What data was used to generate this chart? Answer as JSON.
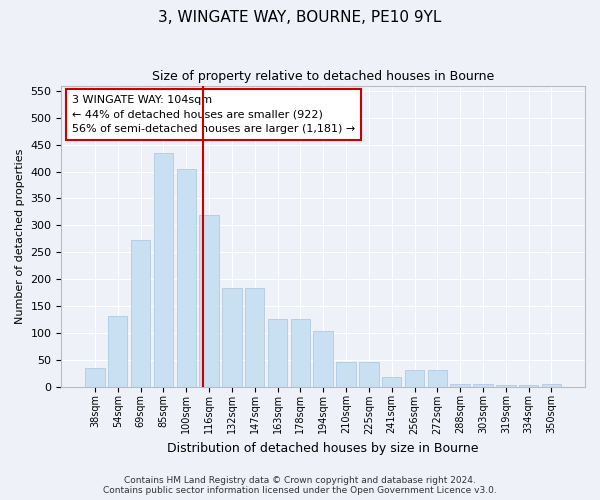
{
  "title_line1": "3, WINGATE WAY, BOURNE, PE10 9YL",
  "title_line2": "Size of property relative to detached houses in Bourne",
  "xlabel": "Distribution of detached houses by size in Bourne",
  "ylabel": "Number of detached properties",
  "footer_line1": "Contains HM Land Registry data © Crown copyright and database right 2024.",
  "footer_line2": "Contains public sector information licensed under the Open Government Licence v3.0.",
  "annotation_line1": "3 WINGATE WAY: 104sqm",
  "annotation_line2": "← 44% of detached houses are smaller (922)",
  "annotation_line3": "56% of semi-detached houses are larger (1,181) →",
  "bar_labels": [
    "38sqm",
    "54sqm",
    "69sqm",
    "85sqm",
    "100sqm",
    "116sqm",
    "132sqm",
    "147sqm",
    "163sqm",
    "178sqm",
    "194sqm",
    "210sqm",
    "225sqm",
    "241sqm",
    "256sqm",
    "272sqm",
    "288sqm",
    "303sqm",
    "319sqm",
    "334sqm",
    "350sqm"
  ],
  "bar_values": [
    35,
    132,
    272,
    435,
    405,
    320,
    183,
    183,
    125,
    125,
    103,
    45,
    45,
    17,
    30,
    30,
    5,
    5,
    2,
    2,
    5
  ],
  "bar_color": "#c9dff2",
  "bar_edge_color": "#a8c4e0",
  "red_line_x": 4.75,
  "ylim": [
    0,
    560
  ],
  "yticks": [
    0,
    50,
    100,
    150,
    200,
    250,
    300,
    350,
    400,
    450,
    500,
    550
  ],
  "background_color": "#eef2f8",
  "grid_color": "#ffffff",
  "annotation_box_color": "#ffffff",
  "annotation_box_edge": "#cc0000",
  "red_line_color": "#cc0000",
  "fig_width": 6.0,
  "fig_height": 5.0,
  "dpi": 100
}
